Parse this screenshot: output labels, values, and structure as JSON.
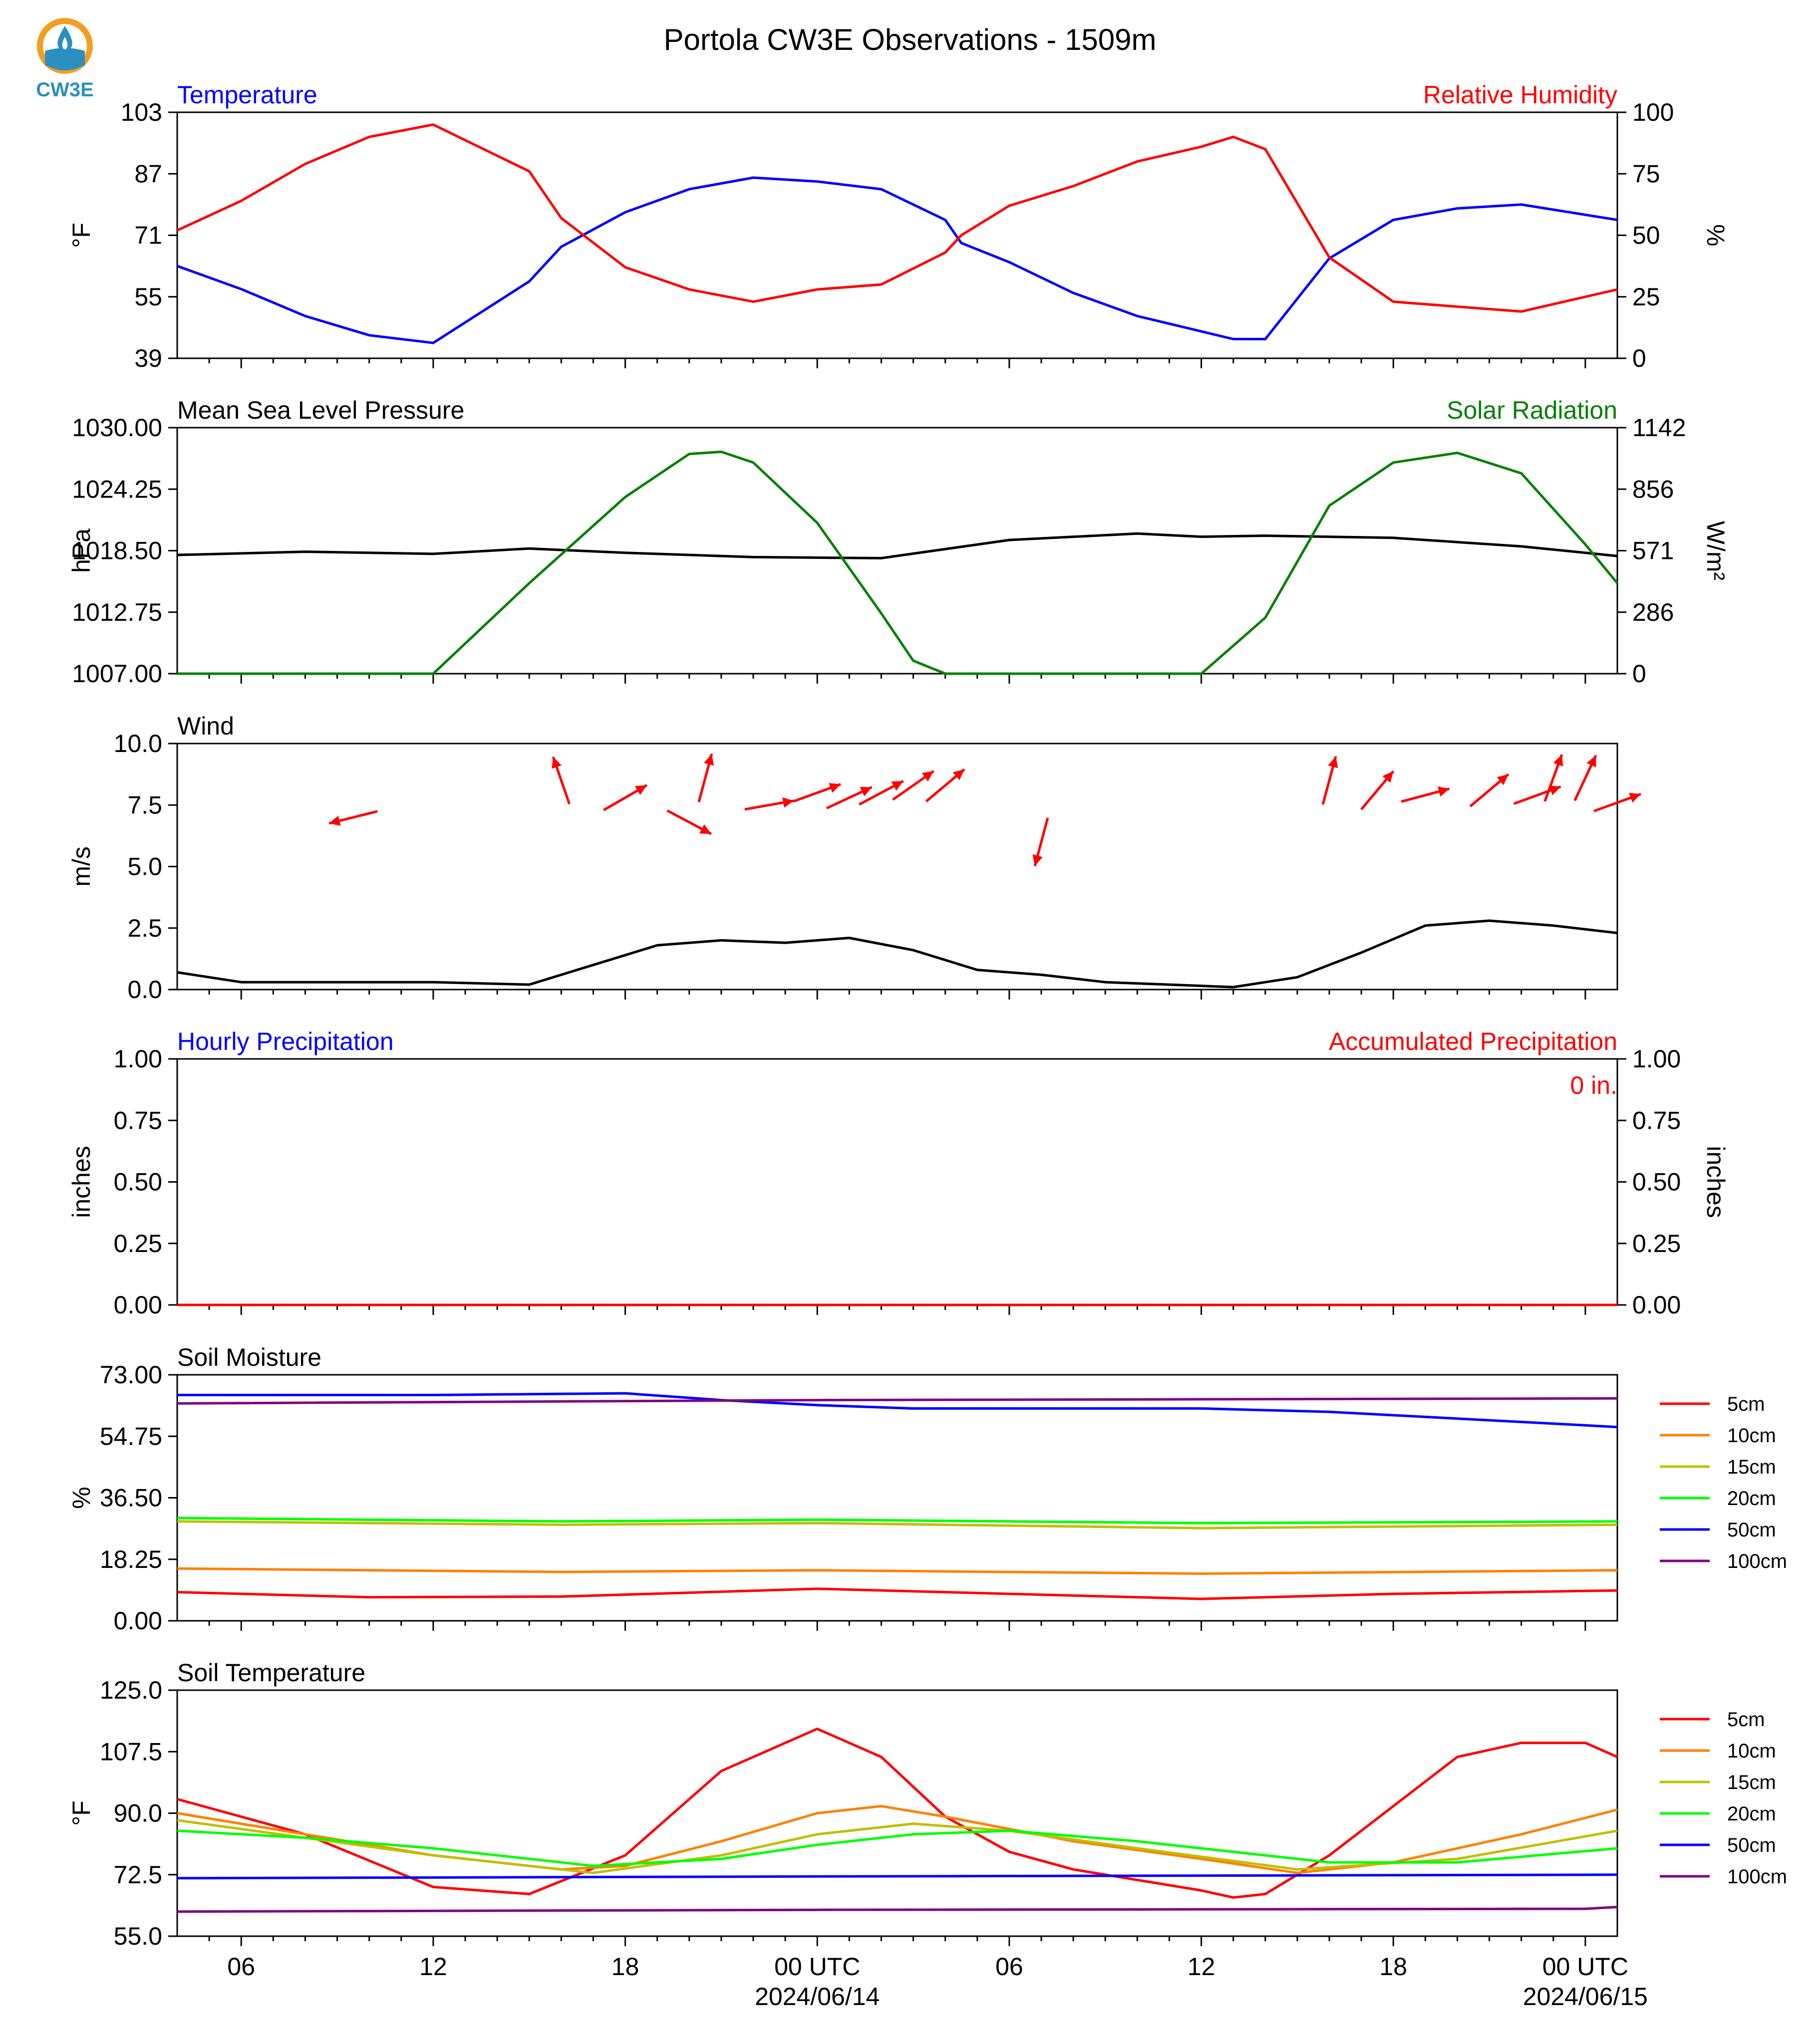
{
  "logo": {
    "text": "CW3E",
    "icon": "water-drop-sun-icon",
    "color": "#2b8fc1",
    "accent": "#f29e1f"
  },
  "title": "Portola CW3E Observations - 1509m",
  "x_axis": {
    "tick_labels": [
      "06",
      "12",
      "18",
      "00 UTC",
      "06",
      "12",
      "18",
      "00 UTC"
    ],
    "tick_hours": [
      6,
      12,
      18,
      24,
      30,
      36,
      42,
      48
    ],
    "date_labels": [
      {
        "hour": 24,
        "text": "2024/06/14"
      },
      {
        "hour": 48,
        "text": "2024/06/15"
      }
    ],
    "range_hours_from_2024-06-13T00Z": [
      4,
      49
    ]
  },
  "panels": {
    "temp_rh": {
      "left_title": "Temperature",
      "right_title": "Relative Humidity",
      "left_color": "#0000ff",
      "right_color": "#ff0000",
      "left_unit": "°F",
      "right_unit": "%",
      "left_ticks": [
        "103",
        "87",
        "71",
        "55",
        "39"
      ],
      "right_ticks": [
        "100",
        "75",
        "50",
        "25",
        "0"
      ]
    },
    "pressure_solar": {
      "left_title": "Mean Sea Level Pressure",
      "right_title": "Solar Radiation",
      "left_color": "#000000",
      "right_color": "#008000",
      "left_unit": "hPa",
      "right_unit": "W/m²",
      "left_ticks": [
        "1030.00",
        "1024.25",
        "1018.50",
        "1012.75",
        "1007.00"
      ],
      "right_ticks": [
        "1142",
        "856",
        "571",
        "286",
        "0"
      ]
    },
    "wind": {
      "left_title": "Wind",
      "left_unit": "m/s",
      "left_ticks": [
        "10.0",
        "7.5",
        "5.0",
        "2.5",
        "0.0"
      ],
      "arrow_color": "#ff0000"
    },
    "precip": {
      "left_title": "Hourly Precipitation",
      "right_title": "Accumulated Precipitation",
      "left_color": "#0000ff",
      "right_color": "#ff0000",
      "left_unit": "inches",
      "right_unit": "inches",
      "left_ticks": [
        "1.00",
        "0.75",
        "0.50",
        "0.25",
        "0.00"
      ],
      "right_ticks": [
        "1.00",
        "0.75",
        "0.50",
        "0.25",
        "0.00"
      ],
      "total_label": "0 in."
    },
    "soil_moisture": {
      "left_title": "Soil Moisture",
      "left_unit": "%",
      "left_ticks": [
        "73.00",
        "54.75",
        "36.50",
        "18.25",
        "0.00"
      ]
    },
    "soil_temp": {
      "left_title": "Soil Temperature",
      "left_unit": "°F",
      "left_ticks": [
        "125.0",
        "107.5",
        "90.0",
        "72.5",
        "55.0"
      ]
    }
  },
  "legend": [
    {
      "label": "5cm",
      "color": "#ff0000"
    },
    {
      "label": "10cm",
      "color": "#ff8000"
    },
    {
      "label": "15cm",
      "color": "#bfbf00"
    },
    {
      "label": "20cm",
      "color": "#00ff00"
    },
    {
      "label": "50cm",
      "color": "#0000ff"
    },
    {
      "label": "100cm",
      "color": "#800080"
    }
  ],
  "chart_data": [
    {
      "type": "line",
      "title": "Temperature / Relative Humidity",
      "ylim_left": [
        39,
        103
      ],
      "ylim_right": [
        0,
        100
      ],
      "series": [
        {
          "name": "Temperature",
          "axis": "left",
          "color": "#0000ff",
          "x": [
            4,
            6,
            8,
            10,
            12,
            15,
            16,
            18,
            20,
            22,
            24,
            26,
            28,
            28.5,
            30,
            32,
            34,
            36,
            37,
            38,
            40,
            42,
            44,
            46,
            49
          ],
          "y": [
            63,
            57,
            50,
            45,
            43,
            59,
            68,
            77,
            83,
            86,
            85,
            83,
            75,
            69,
            64,
            56,
            50,
            46,
            44,
            44,
            65,
            75,
            78,
            79,
            75
          ]
        },
        {
          "name": "Relative Humidity",
          "axis": "right",
          "color": "#ff0000",
          "x": [
            4,
            6,
            8,
            10,
            12,
            15,
            16,
            18,
            20,
            22,
            24,
            26,
            28,
            28.5,
            30,
            32,
            34,
            36,
            37,
            38,
            40,
            42,
            44,
            46,
            49
          ],
          "y": [
            52,
            64,
            79,
            90,
            95,
            76,
            57,
            37,
            28,
            23,
            28,
            30,
            43,
            50,
            62,
            70,
            80,
            86,
            90,
            85,
            41,
            23,
            21,
            19,
            28
          ]
        }
      ]
    },
    {
      "type": "line",
      "title": "Mean Sea Level Pressure / Solar Radiation",
      "ylim_left": [
        1007,
        1030
      ],
      "ylim_right": [
        0,
        1142
      ],
      "series": [
        {
          "name": "Mean Sea Level Pressure",
          "axis": "left",
          "color": "#000000",
          "x": [
            4,
            8,
            12,
            15,
            18,
            22,
            26,
            30,
            34,
            36,
            38,
            42,
            46,
            49
          ],
          "y": [
            1018.1,
            1018.4,
            1018.2,
            1018.7,
            1018.3,
            1017.9,
            1017.8,
            1019.5,
            1020.1,
            1019.8,
            1019.9,
            1019.7,
            1018.9,
            1018.0
          ]
        },
        {
          "name": "Solar Radiation",
          "axis": "right",
          "color": "#008000",
          "x": [
            4,
            12,
            15,
            18,
            20,
            21,
            22,
            24,
            26,
            27,
            28,
            29,
            36,
            38,
            40,
            42,
            44,
            46,
            48,
            49
          ],
          "y": [
            0,
            0,
            420,
            820,
            1020,
            1030,
            980,
            700,
            280,
            60,
            0,
            0,
            0,
            260,
            780,
            980,
            1025,
            930,
            600,
            420
          ]
        }
      ]
    },
    {
      "type": "line",
      "title": "Wind",
      "ylim": [
        0,
        10
      ],
      "series": [
        {
          "name": "Wind Speed",
          "color": "#000000",
          "x": [
            4,
            6,
            8,
            10,
            12,
            15,
            17,
            19,
            21,
            23,
            25,
            27,
            29,
            31,
            33,
            35,
            37,
            39,
            41,
            43,
            45,
            47,
            49
          ],
          "y": [
            0.7,
            0.3,
            0.3,
            0.3,
            0.3,
            0.2,
            1.0,
            1.8,
            2.0,
            1.9,
            2.1,
            1.6,
            0.8,
            0.6,
            0.3,
            0.2,
            0.1,
            0.5,
            1.5,
            2.6,
            2.8,
            2.6,
            2.3
          ]
        },
        {
          "name": "Wind Direction",
          "color": "#ff0000",
          "kind": "arrows",
          "x": [
            9.5,
            16,
            18,
            20,
            20.5,
            22.5,
            24,
            25,
            26,
            27,
            28,
            31,
            40,
            41.5,
            43,
            45,
            46.5,
            47,
            48,
            49
          ],
          "y": [
            7.0,
            8.5,
            7.8,
            6.8,
            8.6,
            7.5,
            8.0,
            7.8,
            8.0,
            8.3,
            8.3,
            6.0,
            8.5,
            8.1,
            7.9,
            8.1,
            7.9,
            8.6,
            8.6,
            7.6
          ],
          "dir_deg": [
            256,
            341,
            60,
            118,
            15,
            80,
            70,
            65,
            62,
            55,
            50,
            195,
            15,
            40,
            75,
            50,
            70,
            20,
            25,
            70
          ]
        }
      ]
    },
    {
      "type": "line",
      "title": "Hourly / Accumulated Precipitation",
      "ylim_left": [
        0,
        1
      ],
      "ylim_right": [
        0,
        1
      ],
      "series": [
        {
          "name": "Hourly Precipitation",
          "axis": "left",
          "color": "#0000ff",
          "x": [
            4,
            49
          ],
          "y": [
            0,
            0
          ]
        },
        {
          "name": "Accumulated Precipitation",
          "axis": "right",
          "color": "#ff0000",
          "x": [
            4,
            49
          ],
          "y": [
            0,
            0
          ]
        }
      ]
    },
    {
      "type": "line",
      "title": "Soil Moisture",
      "ylim": [
        0,
        73
      ],
      "series": [
        {
          "name": "5cm",
          "color": "#ff0000",
          "x": [
            4,
            10,
            16,
            24,
            30,
            36,
            42,
            49
          ],
          "y": [
            8.5,
            7.0,
            7.2,
            9.5,
            8.0,
            6.5,
            8.0,
            9.0
          ]
        },
        {
          "name": "10cm",
          "color": "#ff8000",
          "x": [
            4,
            16,
            24,
            36,
            49
          ],
          "y": [
            15.5,
            14.5,
            15.0,
            14.0,
            15.0
          ]
        },
        {
          "name": "15cm",
          "color": "#bfbf00",
          "x": [
            4,
            16,
            24,
            36,
            49
          ],
          "y": [
            29.5,
            28.5,
            29.0,
            27.5,
            28.5
          ]
        },
        {
          "name": "20cm",
          "color": "#00ff00",
          "x": [
            4,
            16,
            24,
            36,
            49
          ],
          "y": [
            30.5,
            29.5,
            30.0,
            29.0,
            29.5
          ]
        },
        {
          "name": "50cm",
          "color": "#0000ff",
          "x": [
            4,
            12,
            18,
            21,
            24,
            27,
            30,
            36,
            40,
            42,
            44,
            46,
            48,
            49
          ],
          "y": [
            67,
            67,
            67.5,
            65.5,
            64,
            63,
            63,
            63,
            62,
            61,
            60,
            59,
            58,
            57.5
          ]
        },
        {
          "name": "100cm",
          "color": "#800080",
          "x": [
            4,
            24,
            49
          ],
          "y": [
            64.5,
            65.5,
            66.0
          ]
        }
      ]
    },
    {
      "type": "line",
      "title": "Soil Temperature",
      "ylim": [
        55,
        125
      ],
      "series": [
        {
          "name": "5cm",
          "color": "#ff0000",
          "x": [
            4,
            8,
            12,
            15,
            18,
            21,
            24,
            26,
            28,
            30,
            32,
            34,
            36,
            37,
            38,
            40,
            42,
            44,
            46,
            48,
            49
          ],
          "y": [
            94,
            84,
            69,
            67,
            78,
            102,
            114,
            106,
            89,
            79,
            74,
            71,
            68,
            66,
            67,
            78,
            92,
            106,
            110,
            110,
            106
          ]
        },
        {
          "name": "10cm",
          "color": "#ff8000",
          "x": [
            4,
            8,
            12,
            16,
            18,
            21,
            24,
            26,
            28,
            32,
            36,
            39,
            42,
            46,
            49
          ],
          "y": [
            90,
            84,
            78,
            74,
            75,
            82,
            90,
            92,
            89,
            82,
            77,
            73,
            76,
            84,
            91
          ]
        },
        {
          "name": "15cm",
          "color": "#bfbf00",
          "x": [
            4,
            8,
            12,
            17,
            21,
            24,
            27,
            30,
            34,
            39,
            44,
            49
          ],
          "y": [
            88,
            83,
            78,
            73,
            78,
            84,
            87,
            85,
            80,
            74,
            77,
            85
          ]
        },
        {
          "name": "20cm",
          "color": "#00ff00",
          "x": [
            4,
            8,
            12,
            17,
            21,
            24,
            27,
            30,
            34,
            40,
            44,
            49
          ],
          "y": [
            85,
            83,
            80,
            75,
            77,
            81,
            84,
            85,
            82,
            76,
            76,
            80
          ]
        },
        {
          "name": "50cm",
          "color": "#0000ff",
          "x": [
            4,
            24,
            49
          ],
          "y": [
            71.5,
            72.0,
            72.5
          ]
        },
        {
          "name": "100cm",
          "color": "#800080",
          "x": [
            4,
            24,
            48,
            49
          ],
          "y": [
            62.0,
            62.5,
            62.8,
            63.3
          ]
        }
      ]
    }
  ]
}
